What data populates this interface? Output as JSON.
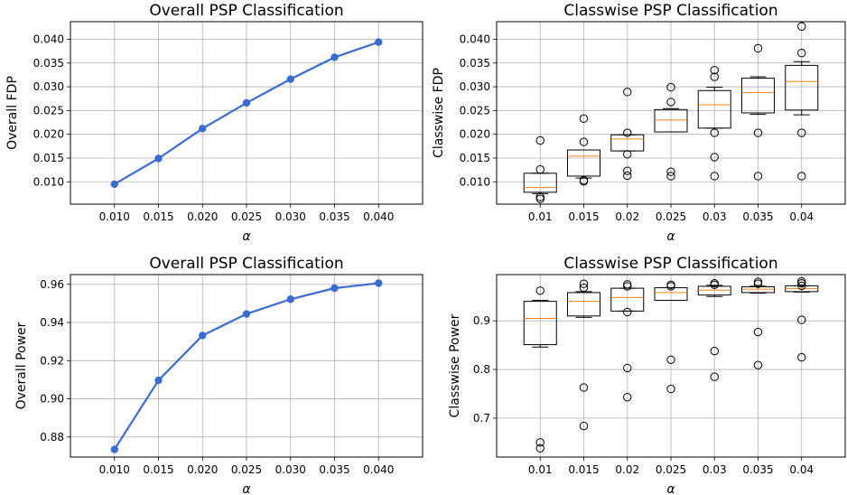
{
  "figure": {
    "chart_data": [
      {
        "type": "line",
        "title": "Overall PSP Classification",
        "xlabel": "α",
        "ylabel": "Overall FDP",
        "x": [
          0.01,
          0.015,
          0.02,
          0.025,
          0.03,
          0.035,
          0.04
        ],
        "x_tick_labels": [
          "0.010",
          "0.015",
          "0.020",
          "0.025",
          "0.030",
          "0.035",
          "0.040"
        ],
        "xlim": [
          0.005,
          0.045
        ],
        "y_ticks": [
          "0.010",
          "0.015",
          "0.020",
          "0.025",
          "0.030",
          "0.035",
          "0.040"
        ],
        "ylim": [
          0.0053,
          0.0437
        ],
        "series": [
          {
            "values": [
              0.0095,
              0.0149,
              0.0212,
              0.0266,
              0.0316,
              0.0362,
              0.0394
            ],
            "color": "#3a6bd1"
          }
        ],
        "grid": true
      },
      {
        "type": "box",
        "title": "Classwise PSP Classification",
        "xlabel": "α",
        "ylabel": "Classwise FDP",
        "categories": [
          "0.01",
          "0.015",
          "0.02",
          "0.025",
          "0.03",
          "0.035",
          "0.04"
        ],
        "y_ticks": [
          "0.010",
          "0.015",
          "0.020",
          "0.025",
          "0.030",
          "0.035",
          "0.040"
        ],
        "ylim": [
          0.0053,
          0.0437
        ],
        "boxes": [
          {
            "whislo": 0.0075,
            "q1": 0.0078,
            "med": 0.0088,
            "q3": 0.0118,
            "whishi": 0.0118,
            "fliers": [
              0.0187,
              0.0126,
              0.0068,
              0.0064
            ]
          },
          {
            "whislo": 0.0108,
            "q1": 0.0112,
            "med": 0.0154,
            "q3": 0.0167,
            "whishi": 0.0167,
            "fliers": [
              0.0233,
              0.0184,
              0.0103,
              0.0101
            ]
          },
          {
            "whislo": 0.0165,
            "q1": 0.0165,
            "med": 0.019,
            "q3": 0.0199,
            "whishi": 0.0199,
            "fliers": [
              0.0289,
              0.0203,
              0.0158,
              0.0123,
              0.0113
            ]
          },
          {
            "whislo": 0.0205,
            "q1": 0.0205,
            "med": 0.023,
            "q3": 0.0252,
            "whishi": 0.0254,
            "fliers": [
              0.0299,
              0.0268,
              0.0121,
              0.0112
            ]
          },
          {
            "whislo": 0.0213,
            "q1": 0.0213,
            "med": 0.0262,
            "q3": 0.0292,
            "whishi": 0.0299,
            "fliers": [
              0.0335,
              0.0321,
              0.0203,
              0.0152,
              0.0112
            ]
          },
          {
            "whislo": 0.0242,
            "q1": 0.0245,
            "med": 0.0288,
            "q3": 0.0318,
            "whishi": 0.0321,
            "fliers": [
              0.0381,
              0.0203,
              0.0112
            ]
          },
          {
            "whislo": 0.0241,
            "q1": 0.0251,
            "med": 0.0311,
            "q3": 0.0345,
            "whishi": 0.0353,
            "fliers": [
              0.0427,
              0.0371,
              0.0203,
              0.0112
            ]
          }
        ],
        "box_color": "#000000",
        "median_color": "#ff7f0e",
        "grid": true
      },
      {
        "type": "line",
        "title": "Overall PSP Classification",
        "xlabel": "α",
        "ylabel": "Overall Power",
        "x": [
          0.01,
          0.015,
          0.02,
          0.025,
          0.03,
          0.035,
          0.04
        ],
        "x_tick_labels": [
          "0.010",
          "0.015",
          "0.020",
          "0.025",
          "0.030",
          "0.035",
          "0.040"
        ],
        "xlim": [
          0.005,
          0.045
        ],
        "y_ticks": [
          "0.88",
          "0.90",
          "0.92",
          "0.94",
          "0.96"
        ],
        "ylim": [
          0.8695,
          0.9651
        ],
        "series": [
          {
            "values": [
              0.8735,
              0.9097,
              0.9332,
              0.9445,
              0.9522,
              0.958,
              0.9606
            ],
            "color": "#3a6bd1"
          }
        ],
        "grid": true
      },
      {
        "type": "box",
        "title": "Classwise PSP Classification",
        "xlabel": "α",
        "ylabel": "Classwise Power",
        "categories": [
          "0.01",
          "0.015",
          "0.02",
          "0.025",
          "0.03",
          "0.035",
          "0.04"
        ],
        "y_ticks": [
          "0.7",
          "0.8",
          "0.9"
        ],
        "ylim": [
          0.62,
          0.995
        ],
        "boxes": [
          {
            "whislo": 0.846,
            "q1": 0.851,
            "med": 0.905,
            "q3": 0.94,
            "whishi": 0.942,
            "fliers": [
              0.962,
              0.65,
              0.638
            ]
          },
          {
            "whislo": 0.907,
            "q1": 0.91,
            "med": 0.94,
            "q3": 0.958,
            "whishi": 0.96,
            "fliers": [
              0.976,
              0.968,
              0.763,
              0.684
            ]
          },
          {
            "whislo": 0.92,
            "q1": 0.92,
            "med": 0.948,
            "q3": 0.967,
            "whishi": 0.967,
            "fliers": [
              0.975,
              0.971,
              0.918,
              0.803,
              0.743
            ]
          },
          {
            "whislo": 0.942,
            "q1": 0.942,
            "med": 0.958,
            "q3": 0.968,
            "whishi": 0.968,
            "fliers": [
              0.974,
              0.971,
              0.82,
              0.76
            ]
          },
          {
            "whislo": 0.95,
            "q1": 0.953,
            "med": 0.963,
            "q3": 0.971,
            "whishi": 0.973,
            "fliers": [
              0.977,
              0.974,
              0.838,
              0.785
            ]
          },
          {
            "whislo": 0.957,
            "q1": 0.958,
            "med": 0.965,
            "q3": 0.97,
            "whishi": 0.971,
            "fliers": [
              0.98,
              0.976,
              0.877,
              0.809
            ]
          },
          {
            "whislo": 0.959,
            "q1": 0.96,
            "med": 0.966,
            "q3": 0.972,
            "whishi": 0.972,
            "fliers": [
              0.981,
              0.977,
              0.972,
              0.902,
              0.825
            ]
          }
        ],
        "box_color": "#000000",
        "median_color": "#ff7f0e",
        "grid": true
      }
    ]
  }
}
